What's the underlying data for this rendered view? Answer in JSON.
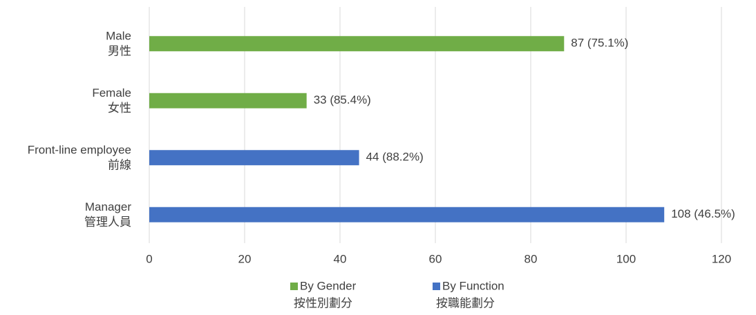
{
  "chart_data": {
    "type": "hbar",
    "categories": [
      [
        "Male",
        "男性"
      ],
      [
        "Female",
        "女性"
      ],
      [
        "Front-line employee",
        "前線"
      ],
      [
        "Manager",
        "管理人員"
      ]
    ],
    "series": [
      {
        "name": [
          "By Gender",
          "按性別劃分"
        ],
        "color": "#70ad47",
        "values": [
          87,
          33,
          null,
          null
        ],
        "value_labels": [
          "87 (75.1%)",
          "33 (85.4%)",
          null,
          null
        ]
      },
      {
        "name": [
          "By Function",
          "按職能劃分"
        ],
        "color": "#4472c4",
        "values": [
          null,
          null,
          44,
          108
        ],
        "value_labels": [
          null,
          null,
          "44 (88.2%)",
          "108 (46.5%)"
        ]
      }
    ],
    "xlim": [
      0,
      120
    ],
    "xticks": [
      0,
      20,
      40,
      60,
      80,
      100,
      120
    ],
    "grid": true,
    "legend": "bottom"
  }
}
